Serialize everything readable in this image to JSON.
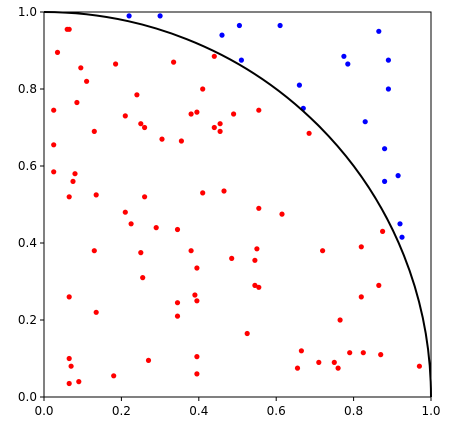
{
  "chart_data": {
    "type": "scatter",
    "title": "",
    "xlabel": "",
    "ylabel": "",
    "xlim": [
      0,
      1
    ],
    "ylim": [
      0,
      1
    ],
    "grid": false,
    "x_ticks": [
      "0.0",
      "0.2",
      "0.4",
      "0.6",
      "0.8",
      "1.0"
    ],
    "y_ticks": [
      "0.0",
      "0.2",
      "0.4",
      "0.6",
      "0.8",
      "1.0"
    ],
    "x_tick_values": [
      0,
      0.2,
      0.4,
      0.6,
      0.8,
      1.0
    ],
    "y_tick_values": [
      0,
      0.2,
      0.4,
      0.6,
      0.8,
      1.0
    ],
    "annotations": [
      {
        "type": "quarter-circle",
        "center": [
          0,
          0
        ],
        "radius": 1,
        "color": "#000000"
      }
    ],
    "series": [
      {
        "color": "#ff0000",
        "points": [
          [
            0.06,
            0.955
          ],
          [
            0.065,
            0.955
          ],
          [
            0.035,
            0.895
          ],
          [
            0.025,
            0.745
          ],
          [
            0.095,
            0.855
          ],
          [
            0.11,
            0.82
          ],
          [
            0.085,
            0.765
          ],
          [
            0.185,
            0.865
          ],
          [
            0.24,
            0.785
          ],
          [
            0.025,
            0.655
          ],
          [
            0.13,
            0.69
          ],
          [
            0.21,
            0.73
          ],
          [
            0.25,
            0.71
          ],
          [
            0.26,
            0.7
          ],
          [
            0.305,
            0.67
          ],
          [
            0.335,
            0.87
          ],
          [
            0.355,
            0.665
          ],
          [
            0.38,
            0.735
          ],
          [
            0.395,
            0.74
          ],
          [
            0.41,
            0.8
          ],
          [
            0.44,
            0.885
          ],
          [
            0.44,
            0.7
          ],
          [
            0.455,
            0.71
          ],
          [
            0.455,
            0.69
          ],
          [
            0.49,
            0.735
          ],
          [
            0.555,
            0.745
          ],
          [
            0.025,
            0.585
          ],
          [
            0.075,
            0.56
          ],
          [
            0.08,
            0.58
          ],
          [
            0.065,
            0.52
          ],
          [
            0.135,
            0.525
          ],
          [
            0.26,
            0.52
          ],
          [
            0.21,
            0.48
          ],
          [
            0.225,
            0.45
          ],
          [
            0.29,
            0.44
          ],
          [
            0.345,
            0.435
          ],
          [
            0.41,
            0.53
          ],
          [
            0.465,
            0.535
          ],
          [
            0.555,
            0.49
          ],
          [
            0.615,
            0.475
          ],
          [
            0.685,
            0.685
          ],
          [
            0.13,
            0.38
          ],
          [
            0.25,
            0.375
          ],
          [
            0.38,
            0.38
          ],
          [
            0.395,
            0.335
          ],
          [
            0.255,
            0.31
          ],
          [
            0.485,
            0.36
          ],
          [
            0.55,
            0.385
          ],
          [
            0.545,
            0.355
          ],
          [
            0.72,
            0.38
          ],
          [
            0.82,
            0.39
          ],
          [
            0.875,
            0.43
          ],
          [
            0.065,
            0.26
          ],
          [
            0.135,
            0.22
          ],
          [
            0.345,
            0.245
          ],
          [
            0.345,
            0.21
          ],
          [
            0.39,
            0.265
          ],
          [
            0.395,
            0.25
          ],
          [
            0.545,
            0.29
          ],
          [
            0.555,
            0.285
          ],
          [
            0.82,
            0.26
          ],
          [
            0.865,
            0.29
          ],
          [
            0.525,
            0.165
          ],
          [
            0.765,
            0.2
          ],
          [
            0.065,
            0.1
          ],
          [
            0.07,
            0.08
          ],
          [
            0.27,
            0.095
          ],
          [
            0.395,
            0.105
          ],
          [
            0.395,
            0.06
          ],
          [
            0.18,
            0.055
          ],
          [
            0.065,
            0.035
          ],
          [
            0.09,
            0.04
          ],
          [
            0.665,
            0.12
          ],
          [
            0.655,
            0.075
          ],
          [
            0.71,
            0.09
          ],
          [
            0.75,
            0.09
          ],
          [
            0.76,
            0.075
          ],
          [
            0.79,
            0.115
          ],
          [
            0.825,
            0.115
          ],
          [
            0.87,
            0.11
          ],
          [
            0.97,
            0.08
          ]
        ]
      },
      {
        "color": "#0000ff",
        "points": [
          [
            0.22,
            0.99
          ],
          [
            0.3,
            0.99
          ],
          [
            0.46,
            0.94
          ],
          [
            0.505,
            0.965
          ],
          [
            0.51,
            0.875
          ],
          [
            0.61,
            0.965
          ],
          [
            0.66,
            0.81
          ],
          [
            0.67,
            0.75
          ],
          [
            0.775,
            0.885
          ],
          [
            0.785,
            0.865
          ],
          [
            0.865,
            0.95
          ],
          [
            0.89,
            0.875
          ],
          [
            0.89,
            0.8
          ],
          [
            0.83,
            0.715
          ],
          [
            0.88,
            0.645
          ],
          [
            0.88,
            0.56
          ],
          [
            0.915,
            0.575
          ],
          [
            0.92,
            0.45
          ],
          [
            0.925,
            0.415
          ]
        ]
      }
    ]
  }
}
